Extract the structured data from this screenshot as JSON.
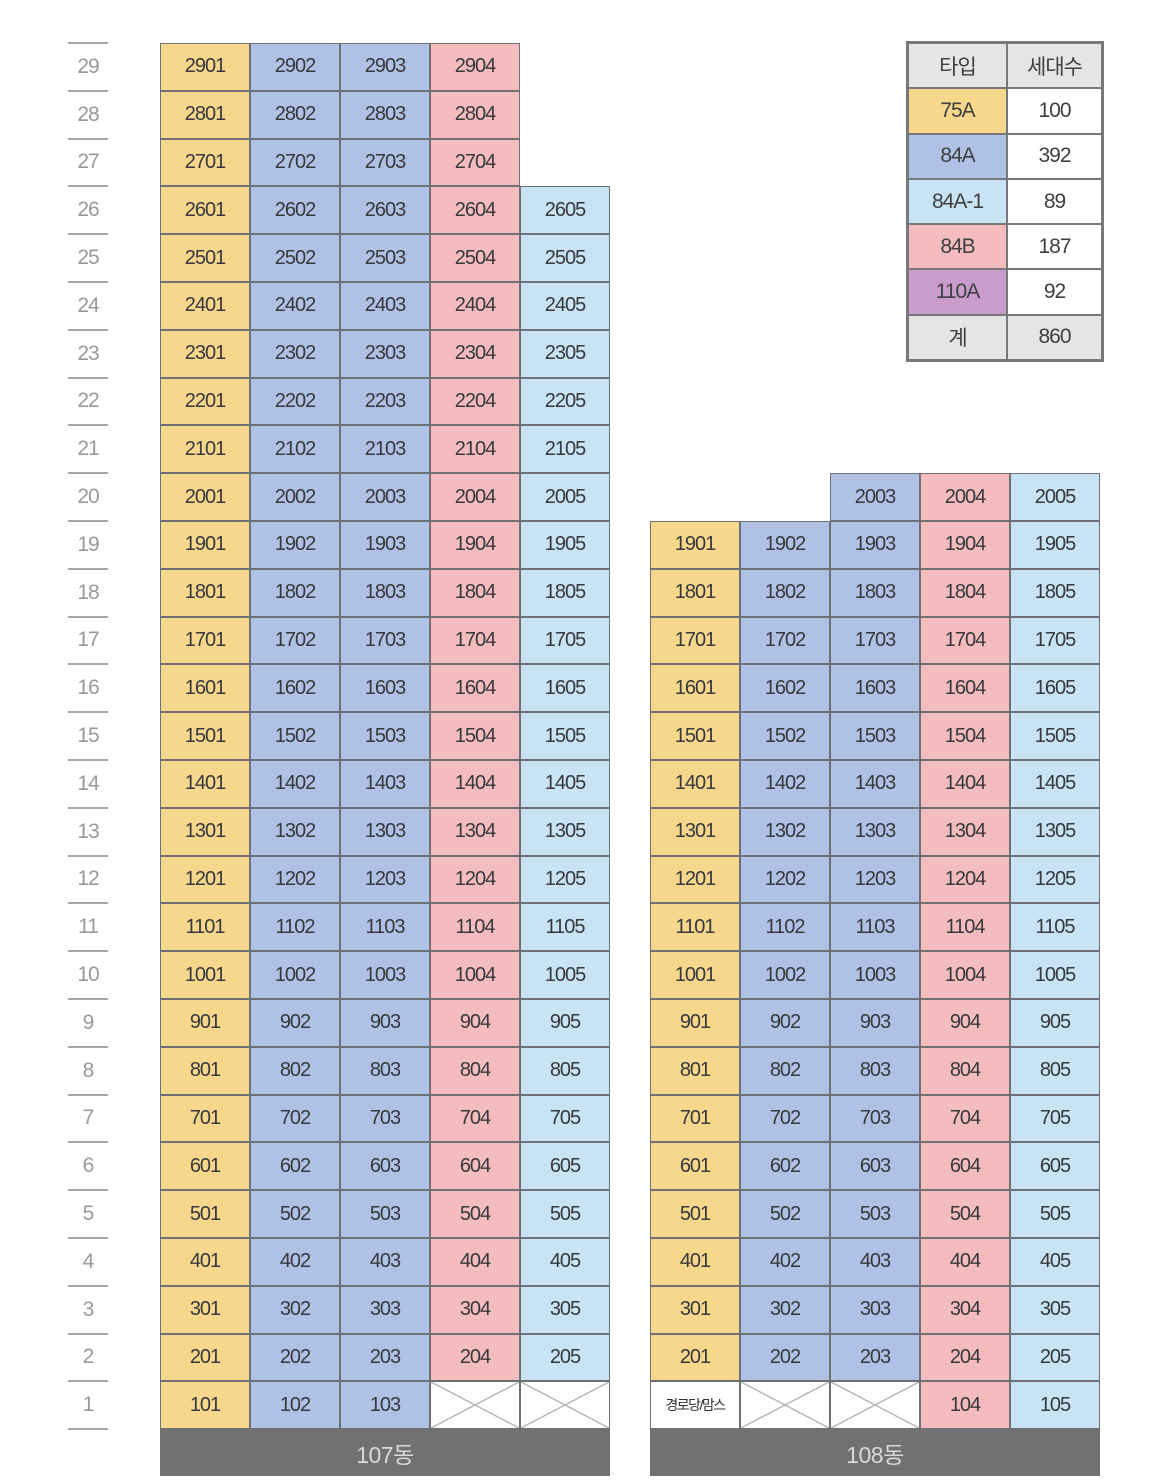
{
  "legend": {
    "col_headers": [
      "타입",
      "세대수"
    ],
    "rows": [
      {
        "key": "75A",
        "label": "75A",
        "value": "100"
      },
      {
        "key": "84A",
        "label": "84A",
        "value": "392"
      },
      {
        "key": "84A1",
        "label": "84A-1",
        "value": "89"
      },
      {
        "key": "84B",
        "label": "84B",
        "value": "187"
      },
      {
        "key": "110A",
        "label": "110A",
        "value": "92"
      },
      {
        "key": "total",
        "label": "계",
        "value": "860"
      }
    ]
  },
  "colors": {
    "75A": "#f6d78c",
    "84A": "#afc2e5",
    "84A1": "#c7e3f4",
    "84B": "#f5bcbe",
    "110A": "#c99ccb",
    "total": "#e5e5e6",
    "header_bg": "#e5e5e6",
    "bar_bg": "#717174",
    "border": "#6e7073"
  },
  "floor_axis": [
    29,
    28,
    27,
    26,
    25,
    24,
    23,
    22,
    21,
    20,
    19,
    18,
    17,
    16,
    15,
    14,
    13,
    12,
    11,
    10,
    9,
    8,
    7,
    6,
    5,
    4,
    3,
    2,
    1
  ],
  "buildings": [
    {
      "name": "107동",
      "col_types": [
        "75A",
        "84A",
        "84A",
        "84B",
        "84A1"
      ],
      "rows": [
        {
          "floor": 29,
          "cells": [
            "2901",
            "2902",
            "2903",
            "2904",
            null
          ]
        },
        {
          "floor": 28,
          "cells": [
            "2801",
            "2802",
            "2803",
            "2804",
            null
          ]
        },
        {
          "floor": 27,
          "cells": [
            "2701",
            "2702",
            "2703",
            "2704",
            null
          ]
        },
        {
          "floor": 26,
          "cells": [
            "2601",
            "2602",
            "2603",
            "2604",
            "2605"
          ]
        },
        {
          "floor": 25,
          "cells": [
            "2501",
            "2502",
            "2503",
            "2504",
            "2505"
          ]
        },
        {
          "floor": 24,
          "cells": [
            "2401",
            "2402",
            "2403",
            "2404",
            "2405"
          ]
        },
        {
          "floor": 23,
          "cells": [
            "2301",
            "2302",
            "2303",
            "2304",
            "2305"
          ]
        },
        {
          "floor": 22,
          "cells": [
            "2201",
            "2202",
            "2203",
            "2204",
            "2205"
          ]
        },
        {
          "floor": 21,
          "cells": [
            "2101",
            "2102",
            "2103",
            "2104",
            "2105"
          ]
        },
        {
          "floor": 20,
          "cells": [
            "2001",
            "2002",
            "2003",
            "2004",
            "2005"
          ]
        },
        {
          "floor": 19,
          "cells": [
            "1901",
            "1902",
            "1903",
            "1904",
            "1905"
          ]
        },
        {
          "floor": 18,
          "cells": [
            "1801",
            "1802",
            "1803",
            "1804",
            "1805"
          ]
        },
        {
          "floor": 17,
          "cells": [
            "1701",
            "1702",
            "1703",
            "1704",
            "1705"
          ]
        },
        {
          "floor": 16,
          "cells": [
            "1601",
            "1602",
            "1603",
            "1604",
            "1605"
          ]
        },
        {
          "floor": 15,
          "cells": [
            "1501",
            "1502",
            "1503",
            "1504",
            "1505"
          ]
        },
        {
          "floor": 14,
          "cells": [
            "1401",
            "1402",
            "1403",
            "1404",
            "1405"
          ]
        },
        {
          "floor": 13,
          "cells": [
            "1301",
            "1302",
            "1303",
            "1304",
            "1305"
          ]
        },
        {
          "floor": 12,
          "cells": [
            "1201",
            "1202",
            "1203",
            "1204",
            "1205"
          ]
        },
        {
          "floor": 11,
          "cells": [
            "1101",
            "1102",
            "1103",
            "1104",
            "1105"
          ]
        },
        {
          "floor": 10,
          "cells": [
            "1001",
            "1002",
            "1003",
            "1004",
            "1005"
          ]
        },
        {
          "floor": 9,
          "cells": [
            "901",
            "902",
            "903",
            "904",
            "905"
          ]
        },
        {
          "floor": 8,
          "cells": [
            "801",
            "802",
            "803",
            "804",
            "805"
          ]
        },
        {
          "floor": 7,
          "cells": [
            "701",
            "702",
            "703",
            "704",
            "705"
          ]
        },
        {
          "floor": 6,
          "cells": [
            "601",
            "602",
            "603",
            "604",
            "605"
          ]
        },
        {
          "floor": 5,
          "cells": [
            "501",
            "502",
            "503",
            "504",
            "505"
          ]
        },
        {
          "floor": 4,
          "cells": [
            "401",
            "402",
            "403",
            "404",
            "405"
          ]
        },
        {
          "floor": 3,
          "cells": [
            "301",
            "302",
            "303",
            "304",
            "305"
          ]
        },
        {
          "floor": 2,
          "cells": [
            "201",
            "202",
            "203",
            "204",
            "205"
          ]
        },
        {
          "floor": 1,
          "cells": [
            "101",
            "102",
            "103",
            "X",
            "X"
          ]
        }
      ]
    },
    {
      "name": "108동",
      "col_types": [
        "75A",
        "84A",
        "84A",
        "84B",
        "84A1"
      ],
      "rows": [
        {
          "floor": 20,
          "cells": [
            null,
            null,
            "2003",
            "2004",
            "2005"
          ]
        },
        {
          "floor": 19,
          "cells": [
            "1901",
            "1902",
            "1903",
            "1904",
            "1905"
          ]
        },
        {
          "floor": 18,
          "cells": [
            "1801",
            "1802",
            "1803",
            "1804",
            "1805"
          ]
        },
        {
          "floor": 17,
          "cells": [
            "1701",
            "1702",
            "1703",
            "1704",
            "1705"
          ]
        },
        {
          "floor": 16,
          "cells": [
            "1601",
            "1602",
            "1603",
            "1604",
            "1605"
          ]
        },
        {
          "floor": 15,
          "cells": [
            "1501",
            "1502",
            "1503",
            "1504",
            "1505"
          ]
        },
        {
          "floor": 14,
          "cells": [
            "1401",
            "1402",
            "1403",
            "1404",
            "1405"
          ]
        },
        {
          "floor": 13,
          "cells": [
            "1301",
            "1302",
            "1303",
            "1304",
            "1305"
          ]
        },
        {
          "floor": 12,
          "cells": [
            "1201",
            "1202",
            "1203",
            "1204",
            "1205"
          ]
        },
        {
          "floor": 11,
          "cells": [
            "1101",
            "1102",
            "1103",
            "1104",
            "1105"
          ]
        },
        {
          "floor": 10,
          "cells": [
            "1001",
            "1002",
            "1003",
            "1004",
            "1005"
          ]
        },
        {
          "floor": 9,
          "cells": [
            "901",
            "902",
            "903",
            "904",
            "905"
          ]
        },
        {
          "floor": 8,
          "cells": [
            "801",
            "802",
            "803",
            "804",
            "805"
          ]
        },
        {
          "floor": 7,
          "cells": [
            "701",
            "702",
            "703",
            "704",
            "705"
          ]
        },
        {
          "floor": 6,
          "cells": [
            "601",
            "602",
            "603",
            "604",
            "605"
          ]
        },
        {
          "floor": 5,
          "cells": [
            "501",
            "502",
            "503",
            "504",
            "505"
          ]
        },
        {
          "floor": 4,
          "cells": [
            "401",
            "402",
            "403",
            "404",
            "405"
          ]
        },
        {
          "floor": 3,
          "cells": [
            "301",
            "302",
            "303",
            "304",
            "305"
          ]
        },
        {
          "floor": 2,
          "cells": [
            "201",
            "202",
            "203",
            "204",
            "205"
          ]
        },
        {
          "floor": 1,
          "cells": [
            "경로당/맘스",
            "X",
            "X",
            "104",
            "105"
          ]
        }
      ]
    }
  ]
}
